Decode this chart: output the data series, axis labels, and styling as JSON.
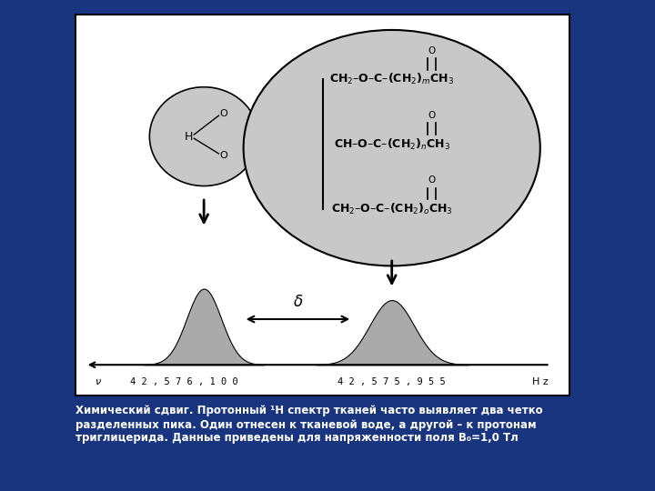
{
  "bg_color": "#1a3580",
  "panel_bg": "#ffffff",
  "panel_border": "#000000",
  "small_circle_color": "#c8c8c8",
  "large_circle_color": "#c8c8c8",
  "peak_color": "#aaaaaa",
  "caption": "Химический сдвиг. Протонный ¹H спектр тканей часто выявляет два четко\nразделенных пика. Один отнесен к тканевой воде, а другой – к протонам\nтриглицерида. Данные приведены для напряженности поля B₀=1,0 Тл",
  "caption_color": "#ffffff",
  "freq_left": "4 2 , 5 7 6 , 1 0 0",
  "freq_right": "4 2 , 5 7 5 , 9 5 5",
  "freq_nu": "ν",
  "freq_hz": "H z",
  "delta_label": "δ"
}
